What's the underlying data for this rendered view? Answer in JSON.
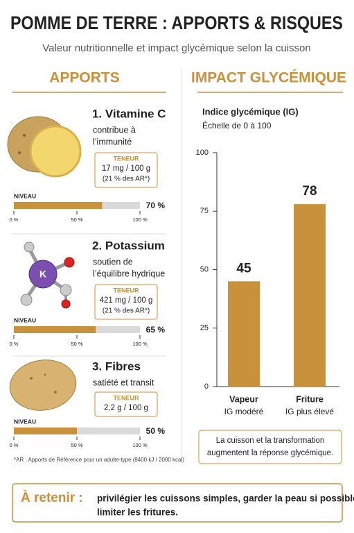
{
  "header": {
    "title": "POMME DE TERRE : APPORTS & RISQUES",
    "subtitle": "Valeur nutritionnelle et impact glycémique selon la cuisson"
  },
  "apports": {
    "title": "APPORTS",
    "scale": {
      "lim": [
        0,
        100
      ],
      "ticks": [
        {
          "value": 0,
          "label": "0 %"
        },
        {
          "value": 50,
          "label": "50 %"
        },
        {
          "value": 100,
          "label": "100 %"
        }
      ]
    },
    "items": [
      {
        "title": "1. Vitamine C",
        "text": [
          "contribue à",
          "l’immunité"
        ],
        "teneur_label": "TENEUR",
        "teneur": [
          "17 mg / 100 g",
          "(21 % des AR*)"
        ],
        "level_label": "NIVEAU",
        "value": 70,
        "value_label": "70 %"
      },
      {
        "title": "2. Potassium",
        "text": [
          "soutien de",
          "l’équilibre hydrique"
        ],
        "teneur_label": "TENEUR",
        "teneur": [
          "421 mg / 100 g",
          "(21 % des AR*)"
        ],
        "level_label": "NIVEAU",
        "value": 65,
        "value_label": "65 %"
      },
      {
        "title": "3. Fibres",
        "text": [
          "satiété et transit"
        ],
        "teneur_label": "TENEUR",
        "teneur": [
          "2,2 g / 100 g"
        ],
        "level_label": "NIVEAU",
        "value": 50,
        "value_label": "50 %"
      }
    ],
    "molecule_label": "K",
    "footnote": "*AR : Apports de Référence pour un adulte-type (8400 kJ / 2000 kcal)"
  },
  "chart_data": {
    "type": "bar",
    "title": "IMPACT GLYCÉMIQUE",
    "subtitle": "Indice glycémique (IG)",
    "axis_note": "Échelle de 0 à 100",
    "categories": [
      "Vapeur",
      "Friture"
    ],
    "category_notes": [
      "IG modéré",
      "IG plus élevé"
    ],
    "values": [
      45,
      78
    ],
    "color": "#c8913a",
    "ylim": [
      0,
      100
    ],
    "yticks": [
      0,
      25,
      50,
      75,
      100
    ],
    "grid": false,
    "note": [
      "La cuisson et la transformation",
      "augmentent la réponse glycémique."
    ]
  },
  "retenir": {
    "label": "À retenir :",
    "text": [
      "privilégier les cuissons simples, garder la peau si possible,",
      "limiter les fritures."
    ]
  }
}
